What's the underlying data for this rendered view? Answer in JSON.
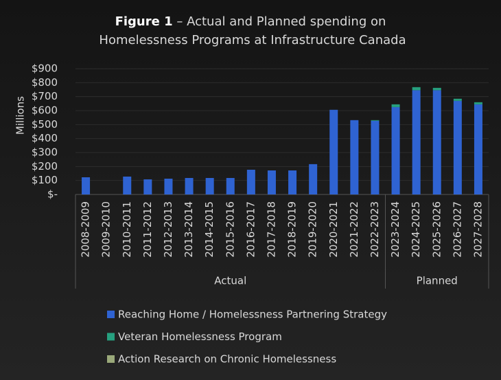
{
  "chart_data": {
    "type": "stacked_bar",
    "title_prefix": "Figure 1",
    "title_lines": [
      "– Actual and Planned spending on",
      "Homelessness Programs at Infrastructure Canada"
    ],
    "y_label": "Millions",
    "categories": [
      "2008-2009",
      "2009-2010",
      "2010-2011",
      "2011-2012",
      "2012-2013",
      "2013-2014",
      "2014-2015",
      "2015-2016",
      "2016-2017",
      "2017-2018",
      "2018-2019",
      "2019-2020",
      "2020-2021",
      "2021-2022",
      "2022-2023",
      "2023-2024",
      "2024-2025",
      "2025-2026",
      "2026-2027",
      "2027-2028"
    ],
    "groups": [
      {
        "name": "Actual",
        "count": 15
      },
      {
        "name": "Planned",
        "count": 5
      }
    ],
    "series": [
      {
        "name": "Reaching Home / Homelessness Partnering Strategy",
        "color": "#2f63d2",
        "values": [
          123,
          0,
          128,
          108,
          113,
          118,
          118,
          118,
          177,
          172,
          172,
          217,
          606,
          532,
          527,
          625,
          746,
          746,
          670,
          645
        ]
      },
      {
        "name": "Veteran Homelessness Program",
        "color": "#26a07f",
        "values": [
          0,
          0,
          0,
          0,
          0,
          0,
          0,
          0,
          0,
          0,
          0,
          0,
          0,
          0,
          5,
          20,
          22,
          17,
          15,
          15
        ]
      },
      {
        "name": "Action Research on Chronic Homelessness",
        "color": "#9aa97a",
        "values": [
          0,
          0,
          0,
          0,
          0,
          0,
          0,
          0,
          0,
          0,
          0,
          0,
          0,
          0,
          0,
          0,
          0,
          0,
          0,
          0
        ]
      }
    ],
    "ylim": [
      0,
      900
    ],
    "yticks": [
      {
        "value": 0,
        "label": "$-"
      },
      {
        "value": 100,
        "label": "$100"
      },
      {
        "value": 200,
        "label": "$200"
      },
      {
        "value": 300,
        "label": "$300"
      },
      {
        "value": 400,
        "label": "$400"
      },
      {
        "value": 500,
        "label": "$500"
      },
      {
        "value": 600,
        "label": "$600"
      },
      {
        "value": 700,
        "label": "$700"
      },
      {
        "value": 800,
        "label": "$800"
      },
      {
        "value": 900,
        "label": "$900"
      }
    ],
    "grid": true
  }
}
